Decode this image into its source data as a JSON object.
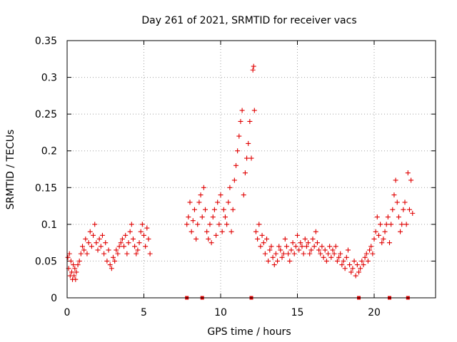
{
  "chart_data": {
    "type": "scatter",
    "title": "Day 261 of 2021, SRMTID for receiver vacs",
    "xlabel": "GPS time / hours",
    "ylabel": "SRMTID / TECUs",
    "xlim": [
      0,
      24
    ],
    "ylim": [
      0,
      0.35
    ],
    "xticks": [
      0,
      5,
      10,
      15,
      20
    ],
    "xtick_labels": [
      "0",
      "5",
      "10",
      "15",
      "20"
    ],
    "yticks": [
      0,
      0.05,
      0.1,
      0.15,
      0.2,
      0.25,
      0.3,
      0.35
    ],
    "ytick_labels": [
      "0",
      "0.05",
      "0.1",
      "0.15",
      "0.2",
      "0.25",
      "0.3",
      "0.35"
    ],
    "grid": true,
    "marker": "plus",
    "colors": {
      "series": "#e00000",
      "grid": "#a0a0a0",
      "axis": "#000000"
    },
    "gap_markers_x": [
      7.8,
      8.8,
      12.0,
      19.0,
      21.0,
      22.2
    ],
    "series": [
      {
        "name": "SRMTID",
        "x": [
          0.05,
          0.1,
          0.15,
          0.2,
          0.25,
          0.3,
          0.35,
          0.4,
          0.45,
          0.5,
          0.55,
          0.6,
          0.7,
          0.8,
          0.9,
          1.0,
          1.1,
          1.2,
          1.3,
          1.4,
          1.5,
          1.6,
          1.7,
          1.8,
          1.9,
          2.0,
          2.1,
          2.2,
          2.3,
          2.4,
          2.5,
          2.6,
          2.7,
          2.8,
          2.9,
          3.0,
          3.1,
          3.2,
          3.3,
          3.4,
          3.5,
          3.6,
          3.7,
          3.8,
          3.9,
          4.0,
          4.1,
          4.2,
          4.3,
          4.4,
          4.5,
          4.6,
          4.7,
          4.8,
          4.9,
          5.0,
          5.1,
          5.2,
          5.3,
          5.4,
          7.8,
          7.9,
          8.0,
          8.1,
          8.2,
          8.3,
          8.4,
          8.5,
          8.6,
          8.7,
          8.8,
          8.9,
          9.0,
          9.1,
          9.2,
          9.3,
          9.4,
          9.5,
          9.6,
          9.7,
          9.8,
          9.9,
          10.0,
          10.1,
          10.2,
          10.3,
          10.4,
          10.5,
          10.6,
          10.7,
          10.8,
          10.9,
          11.0,
          11.1,
          11.2,
          11.3,
          11.4,
          11.5,
          11.6,
          11.7,
          11.8,
          11.9,
          12.0,
          12.1,
          12.15,
          12.2,
          12.3,
          12.4,
          12.5,
          12.6,
          12.7,
          12.8,
          12.9,
          13.0,
          13.1,
          13.2,
          13.3,
          13.4,
          13.5,
          13.6,
          13.7,
          13.8,
          13.9,
          14.0,
          14.1,
          14.2,
          14.3,
          14.4,
          14.5,
          14.6,
          14.7,
          14.8,
          14.9,
          15.0,
          15.1,
          15.2,
          15.3,
          15.4,
          15.5,
          15.6,
          15.7,
          15.8,
          15.9,
          16.0,
          16.1,
          16.2,
          16.3,
          16.4,
          16.5,
          16.6,
          16.7,
          16.8,
          16.9,
          17.0,
          17.1,
          17.2,
          17.3,
          17.4,
          17.5,
          17.6,
          17.7,
          17.8,
          17.9,
          18.0,
          18.1,
          18.2,
          18.3,
          18.4,
          18.5,
          18.6,
          18.7,
          18.8,
          18.9,
          19.0,
          19.1,
          19.2,
          19.3,
          19.4,
          19.5,
          19.6,
          19.7,
          19.8,
          19.9,
          20.0,
          20.1,
          20.2,
          20.3,
          20.4,
          20.5,
          20.6,
          20.7,
          20.8,
          20.9,
          21.0,
          21.1,
          21.2,
          21.3,
          21.4,
          21.5,
          21.6,
          21.7,
          21.8,
          21.9,
          22.0,
          22.1,
          22.2,
          22.3,
          22.4,
          22.5
        ],
        "y": [
          0.055,
          0.04,
          0.06,
          0.03,
          0.05,
          0.035,
          0.025,
          0.045,
          0.03,
          0.04,
          0.025,
          0.035,
          0.045,
          0.05,
          0.06,
          0.07,
          0.065,
          0.08,
          0.06,
          0.075,
          0.09,
          0.07,
          0.085,
          0.1,
          0.075,
          0.065,
          0.08,
          0.07,
          0.085,
          0.06,
          0.075,
          0.05,
          0.065,
          0.045,
          0.04,
          0.055,
          0.05,
          0.065,
          0.06,
          0.07,
          0.075,
          0.08,
          0.07,
          0.085,
          0.06,
          0.075,
          0.09,
          0.1,
          0.08,
          0.07,
          0.06,
          0.065,
          0.075,
          0.09,
          0.1,
          0.085,
          0.07,
          0.095,
          0.08,
          0.06,
          0.1,
          0.11,
          0.13,
          0.09,
          0.105,
          0.12,
          0.08,
          0.1,
          0.13,
          0.14,
          0.11,
          0.15,
          0.12,
          0.09,
          0.08,
          0.1,
          0.075,
          0.11,
          0.12,
          0.085,
          0.13,
          0.1,
          0.14,
          0.09,
          0.12,
          0.11,
          0.1,
          0.13,
          0.15,
          0.09,
          0.12,
          0.16,
          0.18,
          0.2,
          0.22,
          0.24,
          0.255,
          0.14,
          0.17,
          0.19,
          0.21,
          0.24,
          0.19,
          0.31,
          0.315,
          0.255,
          0.09,
          0.08,
          0.1,
          0.07,
          0.085,
          0.075,
          0.06,
          0.08,
          0.05,
          0.065,
          0.07,
          0.055,
          0.045,
          0.06,
          0.05,
          0.07,
          0.065,
          0.055,
          0.06,
          0.08,
          0.07,
          0.06,
          0.05,
          0.065,
          0.075,
          0.06,
          0.07,
          0.085,
          0.065,
          0.075,
          0.07,
          0.06,
          0.08,
          0.07,
          0.075,
          0.06,
          0.065,
          0.08,
          0.07,
          0.09,
          0.075,
          0.065,
          0.06,
          0.07,
          0.055,
          0.065,
          0.05,
          0.06,
          0.07,
          0.055,
          0.065,
          0.06,
          0.07,
          0.05,
          0.055,
          0.06,
          0.045,
          0.05,
          0.04,
          0.055,
          0.065,
          0.045,
          0.035,
          0.04,
          0.05,
          0.03,
          0.045,
          0.035,
          0.04,
          0.05,
          0.045,
          0.055,
          0.06,
          0.05,
          0.065,
          0.07,
          0.06,
          0.08,
          0.09,
          0.11,
          0.085,
          0.1,
          0.075,
          0.08,
          0.09,
          0.1,
          0.11,
          0.075,
          0.1,
          0.12,
          0.14,
          0.16,
          0.13,
          0.11,
          0.09,
          0.1,
          0.12,
          0.13,
          0.1,
          0.17,
          0.12,
          0.16,
          0.115
        ]
      }
    ]
  }
}
